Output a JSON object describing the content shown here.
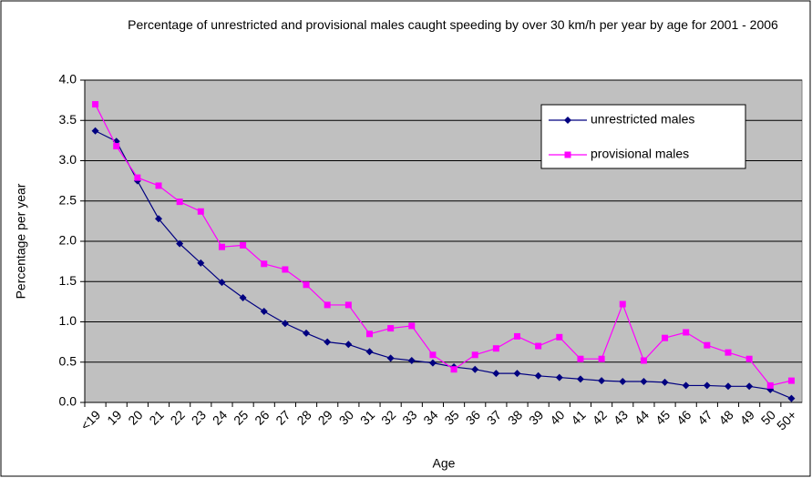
{
  "chart_data": {
    "type": "line",
    "title": "Percentage of unrestricted and provisional males caught speeding by over 30 km/h per year by age for 2001 - 2006",
    "x_label": "Age",
    "y_label": "Percentage per year",
    "categories": [
      "<19",
      "19",
      "20",
      "21",
      "22",
      "23",
      "24",
      "25",
      "26",
      "27",
      "28",
      "29",
      "30",
      "31",
      "32",
      "33",
      "34",
      "35",
      "36",
      "37",
      "38",
      "39",
      "40",
      "41",
      "42",
      "43",
      "44",
      "45",
      "46",
      "47",
      "48",
      "49",
      "50",
      "50+"
    ],
    "series": [
      {
        "name": "unrestricted males",
        "color": "#000080",
        "marker": "diamond",
        "values": [
          3.37,
          3.24,
          2.75,
          2.28,
          1.97,
          1.73,
          1.49,
          1.3,
          1.13,
          0.98,
          0.86,
          0.75,
          0.72,
          0.63,
          0.55,
          0.52,
          0.49,
          0.44,
          0.41,
          0.36,
          0.36,
          0.33,
          0.31,
          0.29,
          0.27,
          0.26,
          0.26,
          0.25,
          0.21,
          0.21,
          0.2,
          0.2,
          0.16,
          0.05
        ]
      },
      {
        "name": "provisional males",
        "color": "#ff00ff",
        "marker": "square",
        "values": [
          3.7,
          3.18,
          2.79,
          2.69,
          2.49,
          2.37,
          1.93,
          1.95,
          1.72,
          1.65,
          1.46,
          1.21,
          1.21,
          0.85,
          0.92,
          0.95,
          0.59,
          0.41,
          0.59,
          0.67,
          0.82,
          0.7,
          0.81,
          0.54,
          0.54,
          1.22,
          0.52,
          0.8,
          0.87,
          0.71,
          0.62,
          0.54,
          0.21,
          0.27
        ]
      }
    ],
    "ylim": [
      0,
      4
    ],
    "yticks": [
      {
        "value": 0,
        "label": "0.0"
      },
      0.5,
      {
        "value": 1,
        "label": "1.0"
      },
      1.5,
      {
        "value": 2,
        "label": "2.0"
      },
      2.5,
      {
        "value": 3,
        "label": "3.0"
      },
      3.5,
      {
        "value": 4,
        "label": "4.0"
      }
    ],
    "grid": true,
    "legend": "upper right"
  }
}
